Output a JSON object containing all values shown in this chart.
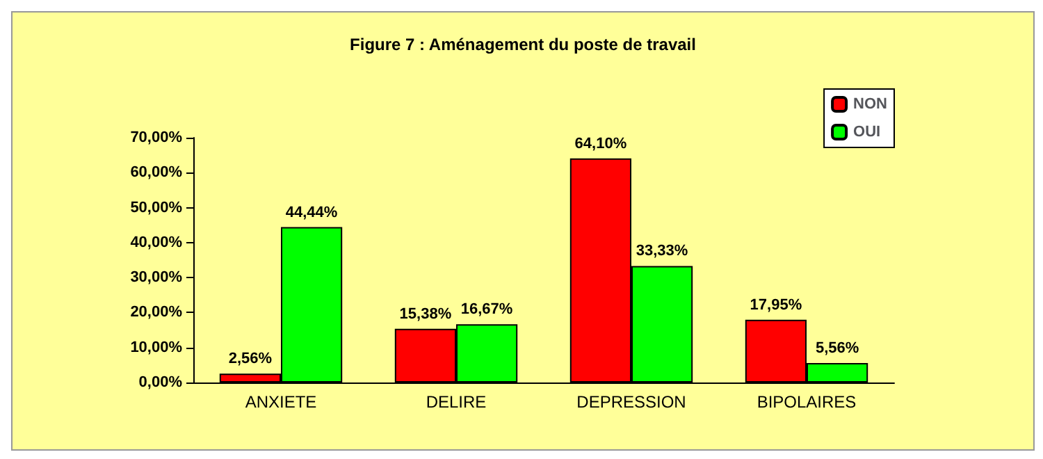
{
  "chart_data": {
    "type": "bar",
    "title": "Figure 7 : Aménagement du poste de travail",
    "categories": [
      "ANXIETE",
      "DELIRE",
      "DEPRESSION",
      "BIPOLAIRES"
    ],
    "series": [
      {
        "name": "NON",
        "color": "#ff0000",
        "values": [
          2.56,
          15.38,
          64.1,
          17.95
        ],
        "value_labels": [
          "2,56%",
          "15,38%",
          "64,10%",
          "17,95%"
        ]
      },
      {
        "name": "OUI",
        "color": "#00ff00",
        "values": [
          44.44,
          16.67,
          33.33,
          5.56
        ],
        "value_labels": [
          "44,44%",
          "16,67%",
          "33,33%",
          "5,56%"
        ]
      }
    ],
    "ylim": [
      0,
      70
    ],
    "yticks": [
      {
        "value": 0,
        "label": "0,00%"
      },
      {
        "value": 10,
        "label": "10,00%"
      },
      {
        "value": 20,
        "label": "20,00%"
      },
      {
        "value": 30,
        "label": "30,00%"
      },
      {
        "value": 40,
        "label": "40,00%"
      },
      {
        "value": 50,
        "label": "50,00%"
      },
      {
        "value": 60,
        "label": "60,00%"
      },
      {
        "value": 70,
        "label": "70,00%"
      }
    ],
    "grid": false,
    "legend": "top right"
  }
}
